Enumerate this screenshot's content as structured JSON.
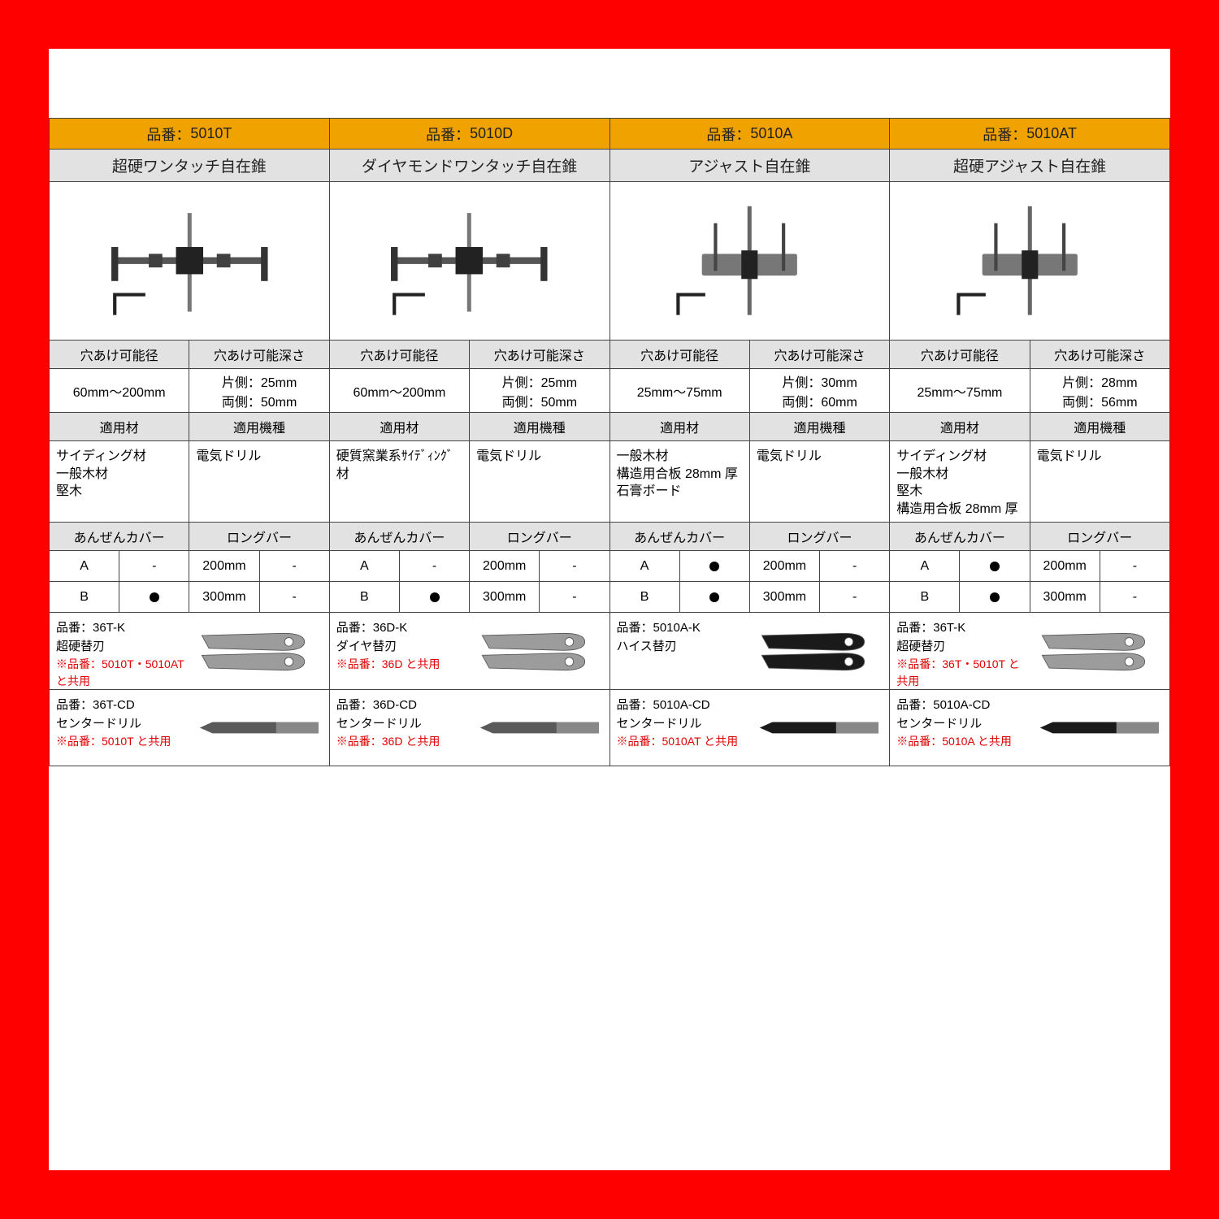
{
  "labels": {
    "part_number_prefix": "品番：",
    "diameter": "穴あけ可能径",
    "depth": "穴あけ可能深さ",
    "material": "適用材",
    "machine": "適用機種",
    "safety_cover": "あんぜんカバー",
    "long_bar": "ロングバー",
    "A": "A",
    "B": "B",
    "dash": "-",
    "200mm": "200mm",
    "300mm": "300mm"
  },
  "products": [
    {
      "part_number": "5010T",
      "name": "超硬ワンタッチ自在錐",
      "image_type": "onetouch",
      "diameter": "60mm～200mm",
      "depth": "片側：25mm\n両側：50mm",
      "materials": "サイディング材\n一般木材\n堅木",
      "machine": "電気ドリル",
      "cover_A": "-",
      "cover_B": "dot",
      "longbar_200": "-",
      "longbar_300": "-",
      "blade_part": "36T-K",
      "blade_name": "超硬替刃",
      "blade_shared": "※品番：5010T・5010AT と共用",
      "blade_color": "#9c9c9c",
      "drill_part": "36T-CD",
      "drill_name": "センタードリル",
      "drill_shared": "※品番：5010T と共用",
      "drill_color": "#5a5a5a"
    },
    {
      "part_number": "5010D",
      "name": "ダイヤモンドワンタッチ自在錐",
      "image_type": "onetouch",
      "diameter": "60mm～200mm",
      "depth": "片側：25mm\n両側：50mm",
      "materials": "硬質窯業系ｻｲﾃﾞｨﾝｸﾞ材",
      "machine": "電気ドリル",
      "cover_A": "-",
      "cover_B": "dot",
      "longbar_200": "-",
      "longbar_300": "-",
      "blade_part": "36D-K",
      "blade_name": "ダイヤ替刃",
      "blade_shared": "※品番：36D と共用",
      "blade_color": "#9c9c9c",
      "drill_part": "36D-CD",
      "drill_name": "センタードリル",
      "drill_shared": "※品番：36D と共用",
      "drill_color": "#5a5a5a"
    },
    {
      "part_number": "5010A",
      "name": "アジャスト自在錐",
      "image_type": "adjust",
      "diameter": "25mm～75mm",
      "depth": "片側：30mm\n両側：60mm",
      "materials": "一般木材\n構造用合板 28mm 厚\n石膏ボード",
      "machine": "電気ドリル",
      "cover_A": "dot",
      "cover_B": "dot",
      "longbar_200": "-",
      "longbar_300": "-",
      "blade_part": "5010A-K",
      "blade_name": "ハイス替刃",
      "blade_shared": "",
      "blade_color": "#1a1a1a",
      "drill_part": "5010A-CD",
      "drill_name": "センタードリル",
      "drill_shared": "※品番：5010AT と共用",
      "drill_color": "#1a1a1a"
    },
    {
      "part_number": "5010AT",
      "name": "超硬アジャスト自在錐",
      "image_type": "adjust",
      "diameter": "25mm～75mm",
      "depth": "片側：28mm\n両側：56mm",
      "materials": "サイディング材\n一般木材\n堅木\n構造用合板 28mm 厚",
      "machine": "電気ドリル",
      "cover_A": "dot",
      "cover_B": "dot",
      "longbar_200": "-",
      "longbar_300": "-",
      "blade_part": "36T-K",
      "blade_name": "超硬替刃",
      "blade_shared": "※品番：36T・5010T と共用",
      "blade_color": "#9c9c9c",
      "drill_part": "5010A-CD",
      "drill_name": "センタードリル",
      "drill_shared": "※品番：5010A と共用",
      "drill_color": "#1a1a1a"
    }
  ],
  "colors": {
    "header_bg": "#f0a300",
    "gray_bg": "#e2e2e2",
    "border": "#444444",
    "shared_text": "#e00000",
    "page_bg": "#ffffff",
    "outer_bg": "#ff0000"
  }
}
